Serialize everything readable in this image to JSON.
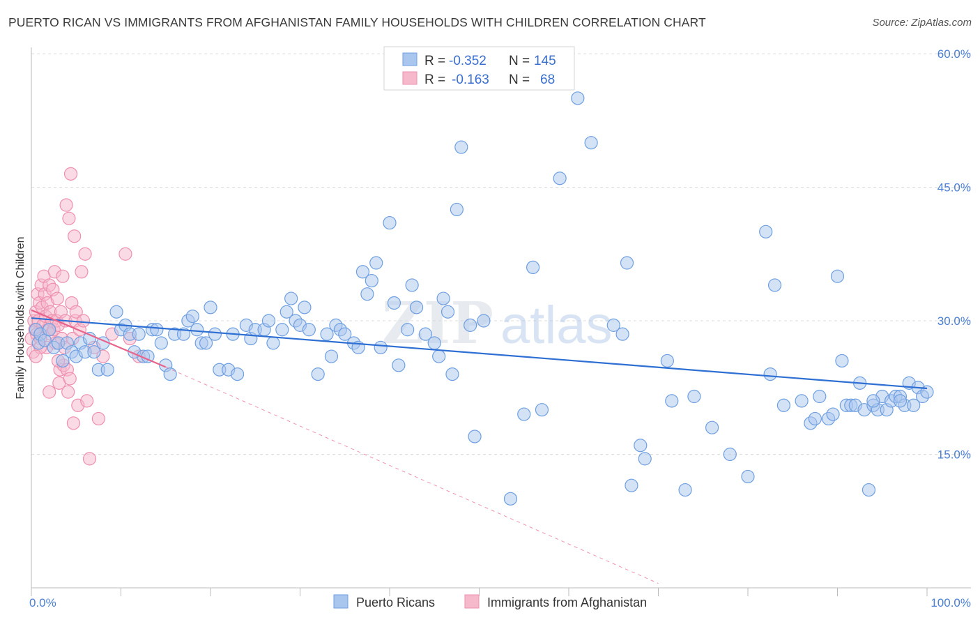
{
  "title": "PUERTO RICAN VS IMMIGRANTS FROM AFGHANISTAN FAMILY HOUSEHOLDS WITH CHILDREN CORRELATION CHART",
  "source": "Source: ZipAtlas.com",
  "watermark": {
    "zip": "ZIP",
    "atlas": "atlas"
  },
  "legend_box": {
    "r_label": "R =",
    "n_label": "N =",
    "rows": [
      {
        "r": "-0.352",
        "n": "145"
      },
      {
        "r": "-0.163",
        "n": "68"
      }
    ]
  },
  "bottom_legend": [
    "Puerto Ricans",
    "Immigrants from Afghanistan"
  ],
  "colors": {
    "blue_fill": "#a9c6ee",
    "blue_stroke": "#6e9fe0",
    "blue_line": "#2e6fd3",
    "pink_fill": "#f6b8cb",
    "pink_stroke": "#ee8fae",
    "pink_line": "#e8648c",
    "grid": "#dcdcdc"
  },
  "chart_data": {
    "type": "scatter",
    "xlabel": "",
    "ylabel": "Family Households with Children",
    "xlim": [
      0,
      100
    ],
    "ylim": [
      0,
      60
    ],
    "x_ticks": [
      "0.0%",
      "100.0%"
    ],
    "y_ticks": [
      {
        "value": 15,
        "label": "15.0%"
      },
      {
        "value": 30,
        "label": "30.0%"
      },
      {
        "value": 45,
        "label": "45.0%"
      },
      {
        "value": 60,
        "label": "60.0%"
      }
    ],
    "grid": true,
    "series": [
      {
        "name": "Puerto Ricans",
        "r": -0.352,
        "n": 145,
        "trend": {
          "x": [
            0,
            100
          ],
          "y": [
            30.3,
            22.4
          ],
          "dashed_extension": false
        },
        "points": [
          [
            0.5,
            29
          ],
          [
            0.8,
            27.5
          ],
          [
            1,
            28.5
          ],
          [
            1.5,
            27.8
          ],
          [
            2,
            29
          ],
          [
            2.5,
            27
          ],
          [
            3,
            27.5
          ],
          [
            3.5,
            25.5
          ],
          [
            4,
            27.5
          ],
          [
            4.5,
            26.5
          ],
          [
            5,
            26
          ],
          [
            5.5,
            27.5
          ],
          [
            6,
            26.5
          ],
          [
            6.5,
            28
          ],
          [
            7,
            26.5
          ],
          [
            7.5,
            24.5
          ],
          [
            8,
            27.5
          ],
          [
            8.5,
            24.5
          ],
          [
            9.5,
            31
          ],
          [
            10,
            29
          ],
          [
            10.5,
            29.5
          ],
          [
            11,
            28.5
          ],
          [
            11.5,
            26.5
          ],
          [
            12,
            28.5
          ],
          [
            12.5,
            26
          ],
          [
            13,
            26
          ],
          [
            13.5,
            29
          ],
          [
            14,
            29
          ],
          [
            14.5,
            27.5
          ],
          [
            15,
            25
          ],
          [
            15.5,
            24
          ],
          [
            16,
            28.5
          ],
          [
            17,
            28.5
          ],
          [
            17.5,
            30
          ],
          [
            18,
            30.5
          ],
          [
            18.5,
            29
          ],
          [
            19,
            27.5
          ],
          [
            19.5,
            27.5
          ],
          [
            20,
            31.5
          ],
          [
            20.5,
            28.5
          ],
          [
            21,
            24.5
          ],
          [
            22,
            24.5
          ],
          [
            22.5,
            28.5
          ],
          [
            23,
            24
          ],
          [
            24,
            29.5
          ],
          [
            24.5,
            28
          ],
          [
            25,
            29
          ],
          [
            26,
            29
          ],
          [
            26.5,
            30
          ],
          [
            27,
            27.5
          ],
          [
            28,
            29
          ],
          [
            28.5,
            31
          ],
          [
            29,
            32.5
          ],
          [
            29.5,
            30
          ],
          [
            30,
            29.5
          ],
          [
            30.5,
            31.5
          ],
          [
            31,
            29
          ],
          [
            32,
            24
          ],
          [
            33,
            28.5
          ],
          [
            33.5,
            26
          ],
          [
            34,
            29.5
          ],
          [
            34.5,
            29
          ],
          [
            35,
            28.5
          ],
          [
            36,
            27.5
          ],
          [
            36.5,
            27
          ],
          [
            37,
            35.5
          ],
          [
            37.5,
            33
          ],
          [
            38,
            34.5
          ],
          [
            38.5,
            36.5
          ],
          [
            39,
            27
          ],
          [
            40,
            41
          ],
          [
            40.5,
            32
          ],
          [
            41,
            25
          ],
          [
            42,
            29
          ],
          [
            42.5,
            34
          ],
          [
            43,
            31.5
          ],
          [
            44,
            28.5
          ],
          [
            45,
            27.5
          ],
          [
            45.5,
            26
          ],
          [
            46,
            32.5
          ],
          [
            46.5,
            31
          ],
          [
            47,
            24
          ],
          [
            47.5,
            42.5
          ],
          [
            48,
            49.5
          ],
          [
            49,
            29.5
          ],
          [
            49.5,
            17
          ],
          [
            50.5,
            30
          ],
          [
            53.5,
            10
          ],
          [
            55,
            19.5
          ],
          [
            56,
            36
          ],
          [
            57,
            20
          ],
          [
            59,
            46
          ],
          [
            61,
            55
          ],
          [
            62.5,
            50
          ],
          [
            65,
            29.5
          ],
          [
            66,
            28.5
          ],
          [
            66.5,
            36.5
          ],
          [
            67,
            11.5
          ],
          [
            68,
            16
          ],
          [
            68.5,
            14.5
          ],
          [
            71,
            25.5
          ],
          [
            71.5,
            21
          ],
          [
            73,
            11
          ],
          [
            74,
            21.5
          ],
          [
            76,
            18
          ],
          [
            78,
            15
          ],
          [
            80,
            12.5
          ],
          [
            82,
            40
          ],
          [
            82.5,
            24
          ],
          [
            83,
            34
          ],
          [
            84,
            20.5
          ],
          [
            86,
            21
          ],
          [
            87,
            18.5
          ],
          [
            87.5,
            19
          ],
          [
            88,
            21.5
          ],
          [
            89,
            19
          ],
          [
            89.5,
            19.5
          ],
          [
            90,
            35
          ],
          [
            90.5,
            25.5
          ],
          [
            91,
            20.5
          ],
          [
            91.5,
            20.5
          ],
          [
            92,
            20.5
          ],
          [
            92.5,
            23
          ],
          [
            93,
            20
          ],
          [
            93.5,
            11
          ],
          [
            94,
            20.5
          ],
          [
            94.5,
            20
          ],
          [
            95,
            21.5
          ],
          [
            95.5,
            20
          ],
          [
            96,
            21
          ],
          [
            96.5,
            21.5
          ],
          [
            97,
            21.5
          ],
          [
            97.5,
            20.5
          ],
          [
            98,
            23
          ],
          [
            98.5,
            20.5
          ],
          [
            99,
            22.5
          ],
          [
            99.5,
            21.5
          ],
          [
            100,
            22
          ],
          [
            97,
            21
          ],
          [
            94,
            21
          ]
        ]
      },
      {
        "name": "Immigrants from Afghanistan",
        "r": -0.163,
        "n": 68,
        "trend": {
          "x": [
            0,
            15
          ],
          "y": [
            31.2,
            24.8
          ],
          "extension_x": [
            15,
            70
          ],
          "extension_y": [
            24.8,
            0.5
          ]
        },
        "points": [
          [
            0,
            28
          ],
          [
            0.2,
            26.5
          ],
          [
            0.3,
            30
          ],
          [
            0.4,
            29
          ],
          [
            0.5,
            31
          ],
          [
            0.6,
            28.5
          ],
          [
            0.7,
            33
          ],
          [
            0.8,
            30
          ],
          [
            0.9,
            32
          ],
          [
            1,
            28
          ],
          [
            1.1,
            34
          ],
          [
            1.2,
            31.5
          ],
          [
            1.3,
            29.5
          ],
          [
            1.4,
            35
          ],
          [
            1.5,
            33
          ],
          [
            1.6,
            30.5
          ],
          [
            1.7,
            27
          ],
          [
            1.8,
            32
          ],
          [
            1.9,
            29
          ],
          [
            2,
            34
          ],
          [
            2.1,
            31
          ],
          [
            2.2,
            28.5
          ],
          [
            2.3,
            30
          ],
          [
            2.4,
            33.5
          ],
          [
            2.5,
            29
          ],
          [
            2.6,
            35.5
          ],
          [
            2.7,
            27.5
          ],
          [
            2.8,
            30
          ],
          [
            2.9,
            32.5
          ],
          [
            3,
            29.5
          ],
          [
            3.1,
            23
          ],
          [
            3.2,
            24.5
          ],
          [
            3.3,
            31
          ],
          [
            3.4,
            28
          ],
          [
            3.5,
            35
          ],
          [
            3.6,
            25
          ],
          [
            3.7,
            27
          ],
          [
            3.8,
            30
          ],
          [
            3.9,
            43
          ],
          [
            4,
            24.5
          ],
          [
            4.1,
            22
          ],
          [
            4.2,
            41.5
          ],
          [
            4.3,
            23.5
          ],
          [
            4.4,
            46.5
          ],
          [
            4.5,
            32
          ],
          [
            4.6,
            28
          ],
          [
            4.7,
            18.5
          ],
          [
            4.8,
            39.5
          ],
          [
            4.9,
            30
          ],
          [
            5,
            31
          ],
          [
            5.2,
            20.5
          ],
          [
            5.4,
            29
          ],
          [
            5.6,
            35.5
          ],
          [
            5.8,
            30
          ],
          [
            6,
            37.5
          ],
          [
            6.2,
            21
          ],
          [
            6.5,
            14.5
          ],
          [
            7,
            27
          ],
          [
            7.5,
            19
          ],
          [
            8,
            26
          ],
          [
            10.5,
            37.5
          ],
          [
            11,
            28
          ],
          [
            9,
            28.5
          ],
          [
            12,
            26
          ],
          [
            2,
            22
          ],
          [
            3,
            25.5
          ],
          [
            1,
            27
          ],
          [
            0.5,
            26
          ]
        ]
      }
    ]
  }
}
